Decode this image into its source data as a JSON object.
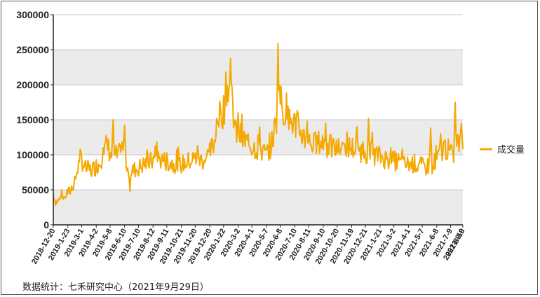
{
  "chart_data": {
    "type": "line",
    "title": "",
    "xlabel": "",
    "ylabel": "",
    "ylim": [
      0,
      300000
    ],
    "y_ticks": [
      "0",
      "50000",
      "100000",
      "150000",
      "200000",
      "250000",
      "300000"
    ],
    "x_tick_labels": [
      "2018-12-20",
      "2019-1-23",
      "2019-3-1",
      "2019-4-2",
      "2019-5-8",
      "2019-6-10",
      "2019-7-10",
      "2019-8-12",
      "2019-9-11",
      "2019-10-21",
      "2019-11-20",
      "2019-12-20",
      "2020-1-22",
      "2020-3-2",
      "2020-4-1",
      "2020-5-7",
      "2020-6-8",
      "2020-7-10",
      "2020-8-11",
      "2020-9-10",
      "2020-10-20",
      "2020-11-19",
      "2020-12-21",
      "2021-1-21",
      "2021-3-2",
      "2021-4-1",
      "2021-5-7",
      "2021-6-8",
      "2021-7-9",
      "2021-8-10",
      "2021-9-9"
    ],
    "grid": "horizontal bands",
    "legend_position": "right",
    "series": [
      {
        "name": "成交量",
        "color": "#F5A800",
        "anchors": [
          [
            0,
            45000
          ],
          [
            3,
            32000
          ],
          [
            8,
            36000
          ],
          [
            14,
            38000
          ],
          [
            18,
            46000
          ],
          [
            22,
            48000
          ],
          [
            28,
            62000
          ],
          [
            33,
            85000
          ],
          [
            36,
            95000
          ],
          [
            42,
            80000
          ],
          [
            50,
            78000
          ],
          [
            60,
            88000
          ],
          [
            70,
            115000
          ],
          [
            75,
            100000
          ],
          [
            85,
            98000
          ],
          [
            90,
            110000
          ],
          [
            95,
            92000
          ],
          [
            98,
            75000
          ],
          [
            105,
            78000
          ],
          [
            112,
            82000
          ],
          [
            120,
            88000
          ],
          [
            127,
            90000
          ],
          [
            135,
            95000
          ],
          [
            145,
            92000
          ],
          [
            155,
            88000
          ],
          [
            165,
            85000
          ],
          [
            175,
            90000
          ],
          [
            185,
            95000
          ],
          [
            195,
            92000
          ],
          [
            203,
            100000
          ],
          [
            210,
            118000
          ],
          [
            215,
            150000
          ],
          [
            222,
            165000
          ],
          [
            228,
            200000
          ],
          [
            233,
            175000
          ],
          [
            238,
            130000
          ],
          [
            245,
            125000
          ],
          [
            252,
            118000
          ],
          [
            260,
            112000
          ],
          [
            266,
            108000
          ],
          [
            272,
            105000
          ],
          [
            278,
            100000
          ],
          [
            284,
            112000
          ],
          [
            291,
            150000
          ],
          [
            294,
            200000
          ],
          [
            297,
            175000
          ],
          [
            302,
            155000
          ],
          [
            310,
            148000
          ],
          [
            318,
            142000
          ],
          [
            324,
            130000
          ],
          [
            332,
            120000
          ],
          [
            340,
            115000
          ],
          [
            350,
            118000
          ],
          [
            360,
            112000
          ],
          [
            370,
            108000
          ],
          [
            380,
            112000
          ],
          [
            390,
            110000
          ],
          [
            400,
            106000
          ],
          [
            410,
            103000
          ],
          [
            420,
            100000
          ],
          [
            430,
            96000
          ],
          [
            440,
            92000
          ],
          [
            450,
            90000
          ],
          [
            455,
            85000
          ],
          [
            462,
            86000
          ],
          [
            470,
            88000
          ],
          [
            478,
            84000
          ],
          [
            485,
            82000
          ],
          [
            490,
            85000
          ],
          [
            496,
            88000
          ],
          [
            503,
            98000
          ],
          [
            510,
            112000
          ],
          [
            515,
            106000
          ],
          [
            520,
            95000
          ],
          [
            526,
            115000
          ],
          [
            530,
            120000
          ],
          [
            534,
            112000
          ]
        ],
        "spikes": [
          [
            11,
            50000
          ],
          [
            35,
            108000
          ],
          [
            65,
            110000
          ],
          [
            78,
            150000
          ],
          [
            93,
            142000
          ],
          [
            100,
            48000
          ],
          [
            135,
            118000
          ],
          [
            188,
            113000
          ],
          [
            213,
            152000
          ],
          [
            225,
            218000
          ],
          [
            231,
            238000
          ],
          [
            241,
            160000
          ],
          [
            269,
            140000
          ],
          [
            293,
            259000
          ],
          [
            304,
            188000
          ],
          [
            331,
            148000
          ],
          [
            355,
            145000
          ],
          [
            396,
            140000
          ],
          [
            411,
            152000
          ],
          [
            416,
            132000
          ],
          [
            440,
            110000
          ],
          [
            455,
            108000
          ],
          [
            492,
            138000
          ],
          [
            505,
            130000
          ],
          [
            524,
            175000
          ],
          [
            532,
            145000
          ]
        ]
      }
    ]
  },
  "legend": {
    "label": "成交量"
  },
  "source_note": "数据统计：七禾研究中心（2021年9月29日）"
}
